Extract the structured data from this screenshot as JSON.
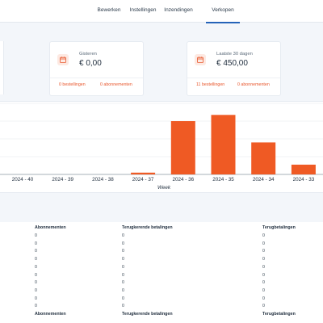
{
  "tabs": [
    {
      "label": "Bewerken",
      "active": false
    },
    {
      "label": "Instellingen",
      "active": false
    },
    {
      "label": "Inzendingen",
      "active": false
    },
    {
      "label": "Verkopen",
      "active": true
    }
  ],
  "cards": [
    {
      "label": "Gisteren",
      "amount": "€ 0,00",
      "orders": "0 bestellingen",
      "subscriptions": "0 abonnementen",
      "icon": "calendar-icon"
    },
    {
      "label": "Laatste 30 dagen",
      "amount": "€ 450,00",
      "orders": "11 bestellingen",
      "subscriptions": "0 abonnementen",
      "icon": "calendar-icon"
    }
  ],
  "colors": {
    "accent": "#e8552a",
    "bar": "#ef5a24",
    "active_tab": "#2563b8"
  },
  "chart_data": {
    "type": "bar",
    "categories": [
      "2024 - 40",
      "2024 - 39",
      "2024 - 38",
      "2024 - 37",
      "2024 - 36",
      "2024 - 35",
      "2024 - 34",
      "2024 - 33"
    ],
    "values": [
      0,
      0,
      0,
      2,
      60,
      67,
      36,
      11
    ],
    "xlabel": "Week",
    "ylim": [
      0,
      80
    ],
    "grid": true
  },
  "table": {
    "headers": [
      "Abonnementen",
      "Terugkerende betalingen",
      "Terugbetalingen"
    ],
    "rows": [
      [
        "0",
        "0",
        "0"
      ],
      [
        "0",
        "0",
        "0"
      ],
      [
        "0",
        "0",
        "0"
      ],
      [
        "0",
        "0",
        "0"
      ],
      [
        "0",
        "0",
        "0"
      ],
      [
        "0",
        "0",
        "0"
      ],
      [
        "0",
        "0",
        "0"
      ],
      [
        "0",
        "0",
        "0"
      ],
      [
        "0",
        "0",
        "0"
      ],
      [
        "0",
        "0",
        "0"
      ]
    ],
    "footer_headers": [
      "Abonnementen",
      "Terugkerende betalingen",
      "Terugbetalingen"
    ]
  }
}
